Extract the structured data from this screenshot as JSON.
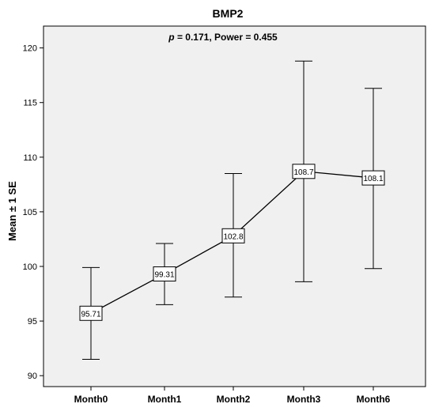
{
  "chart_data": {
    "type": "line",
    "title": "BMP2",
    "annotation_p": "p",
    "annotation_rest": " = 0.171, Power = 0.455",
    "xlabel": "",
    "ylabel": "Mean ± 1 SE",
    "ylim": [
      89,
      122
    ],
    "yticks": [
      90,
      95,
      100,
      105,
      110,
      115,
      120
    ],
    "categories": [
      "Month0",
      "Month1",
      "Month2",
      "Month3",
      "Month6"
    ],
    "series": [
      {
        "values": [
          95.71,
          99.31,
          102.8,
          108.7,
          108.1
        ],
        "labels": [
          "95.71",
          "99.31",
          "102.8",
          "108.7",
          "108.1"
        ],
        "error_lower": [
          91.5,
          96.5,
          97.2,
          98.6,
          99.8
        ],
        "error_upper": [
          99.9,
          102.1,
          108.5,
          118.8,
          116.3
        ]
      }
    ],
    "grid": false,
    "plot_background": "#f0f0f0",
    "line_color": "#000000"
  }
}
